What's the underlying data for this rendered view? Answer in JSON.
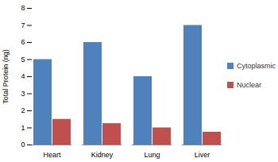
{
  "chart_data": {
    "type": "bar",
    "categories": [
      "Heart",
      "Kidney",
      "Lung",
      "Liver"
    ],
    "series": [
      {
        "name": "Cytoplasmic",
        "color": "#4f81bd",
        "values": [
          5,
          6,
          4,
          7
        ]
      },
      {
        "name": "Nuclear",
        "color": "#c0504d",
        "values": [
          1.5,
          1.25,
          1.0,
          0.75
        ]
      }
    ],
    "y_label": "Total Protein (ng)",
    "ylim": [
      0,
      8
    ],
    "yticks": [
      0,
      1,
      2,
      3,
      4,
      5,
      6,
      7,
      8
    ],
    "grid": false,
    "legend": "right"
  }
}
